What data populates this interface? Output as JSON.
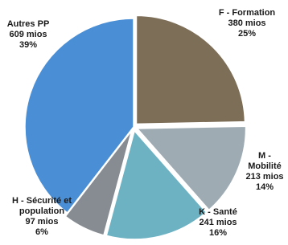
{
  "chart_data": {
    "type": "pie",
    "categories": [
      "F - Formation",
      "M - Mobilité",
      "K - Santé",
      "H - Sécurité et population",
      "Autres PP"
    ],
    "values": [
      380,
      213,
      241,
      97,
      609
    ],
    "value_labels": [
      "380 mios",
      "213 mios",
      "241 mios",
      "97 mios",
      "609 mios"
    ],
    "shares": [
      25,
      14,
      16,
      6,
      39
    ],
    "share_labels": [
      "25%",
      "14%",
      "16%",
      "6%",
      "39%"
    ],
    "colors": [
      "#7d6e58",
      "#9eabb3",
      "#6db2c3",
      "#878c93",
      "#4a8fd6"
    ]
  }
}
